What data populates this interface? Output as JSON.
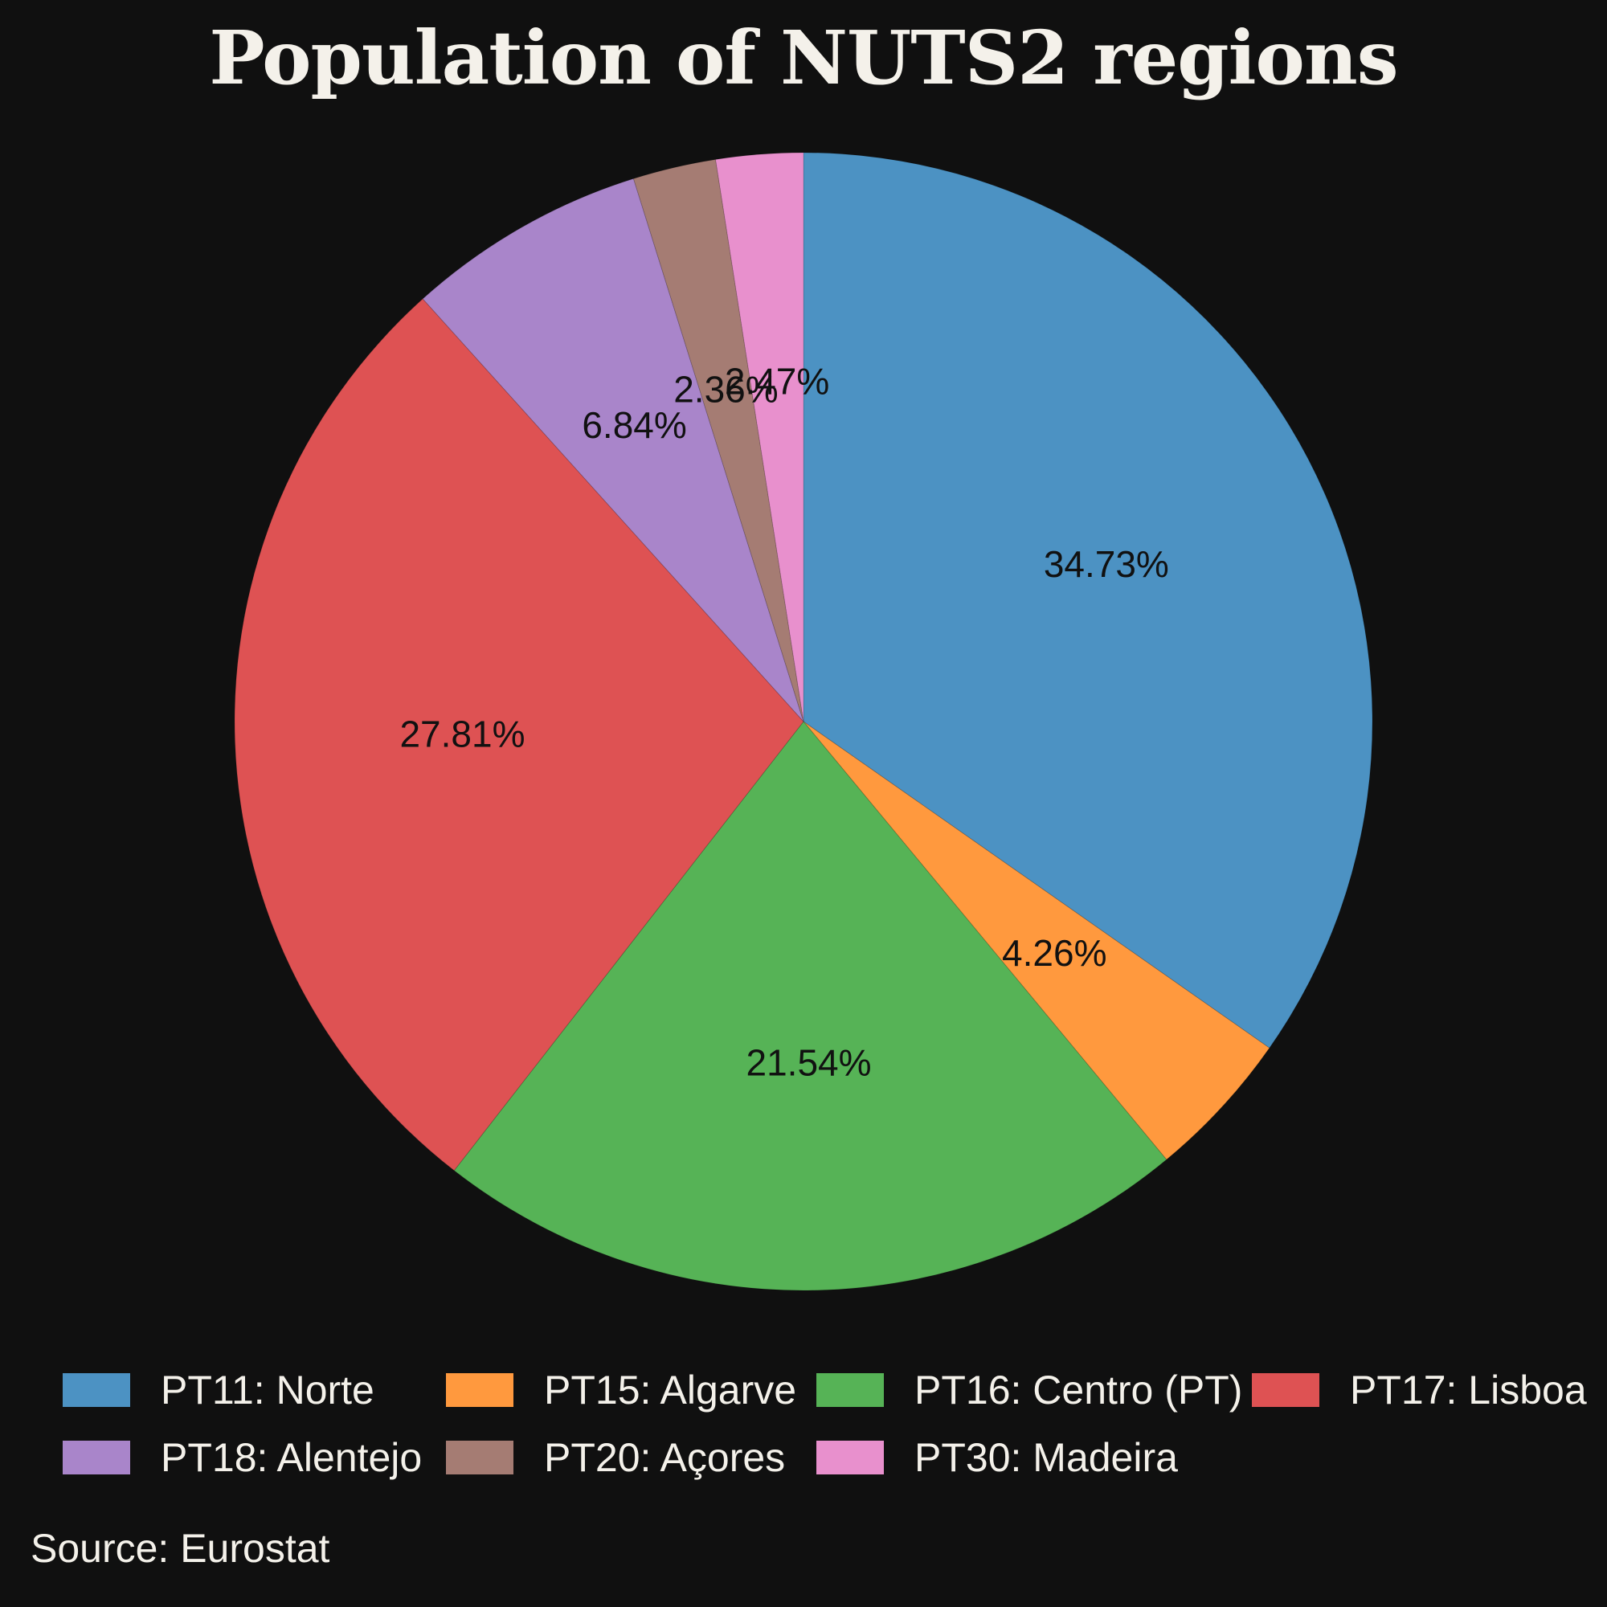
{
  "chart_data": {
    "type": "pie",
    "title": "Population of NUTS2 regions",
    "slices": [
      {
        "label": "PT11: Norte",
        "value": 34.73,
        "display": "34.73%",
        "color": "#4c92c3"
      },
      {
        "label": "PT15: Algarve",
        "value": 4.26,
        "display": "4.26%",
        "color": "#ff993e"
      },
      {
        "label": "PT16: Centro (PT)",
        "value": 21.54,
        "display": "21.54%",
        "color": "#56b356"
      },
      {
        "label": "PT17: Lisboa",
        "value": 27.81,
        "display": "27.81%",
        "color": "#de5253"
      },
      {
        "label": "PT18: Alentejo",
        "value": 6.84,
        "display": "6.84%",
        "color": "#a985ca"
      },
      {
        "label": "PT20: Açores",
        "value": 2.36,
        "display": "2.36%",
        "color": "#a57c73"
      },
      {
        "label": "PT30: Madeira",
        "value": 2.47,
        "display": "2.47%",
        "color": "#e890cd"
      }
    ],
    "start_angle": "12 o'clock",
    "direction": "clockwise",
    "legend_position": "bottom",
    "source": "Source: Eurostat"
  }
}
